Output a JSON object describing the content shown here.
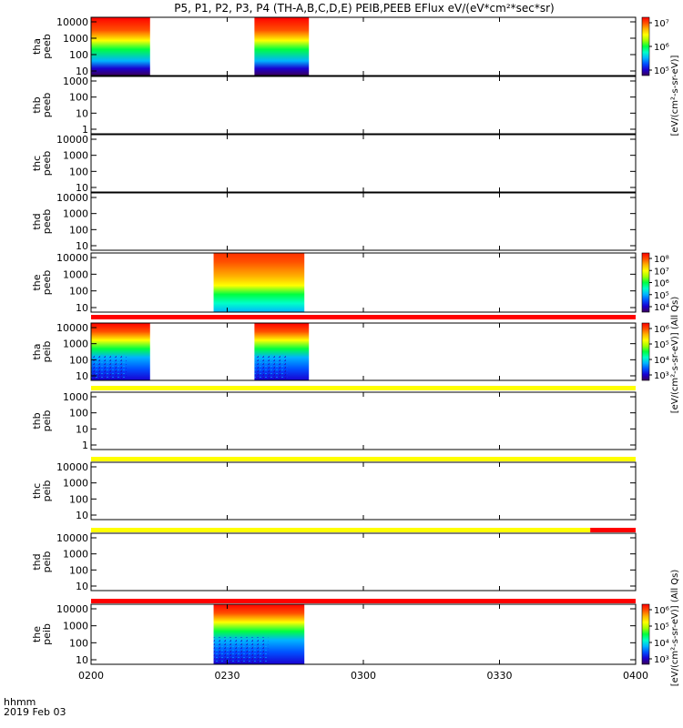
{
  "title": "P5, P1, P2, P3, P4 (TH-A,B,C,D,E) PEIB,PEEB EFlux eV/(eV*cm²*sec*sr)",
  "x_axis": {
    "labels": [
      "0200",
      "0230",
      "0300",
      "0330",
      "0400"
    ],
    "footer_unit": "hhmm",
    "footer_date": "2019 Feb 03"
  },
  "colorbar_labels": {
    "top": "[eV/(cm²-s-sr-eV)]",
    "middle_pair": "[eV/(cm²-s-sr-eV)] (All Qs)",
    "bottom": "[eV/(cm²-s-sr-eV)] (All Qs)"
  },
  "colors": {
    "status_red": "#ff0000",
    "status_yellow": "#ffff00",
    "spectrum": [
      "#3b005a",
      "#1a00d0",
      "#0050ff",
      "#00b4ff",
      "#00ffc8",
      "#00ff40",
      "#a0ff00",
      "#ffff00",
      "#ffb400",
      "#ff5000",
      "#ff0000"
    ]
  },
  "chart_data": [
    {
      "type": "heatmap",
      "probe": "tha",
      "product": "peeb",
      "ylabel": [
        "tha",
        "peeb"
      ],
      "yscale": "log",
      "yticks": [
        "10",
        "100",
        "1000",
        "10000"
      ],
      "time_blocks": [
        [
          "02:00",
          "02:13"
        ],
        [
          "02:36",
          "02:48"
        ]
      ],
      "colorbar": {
        "ticks": [
          "10⁵",
          "10⁶",
          "10⁷"
        ]
      },
      "status_bar": null
    },
    {
      "type": "heatmap",
      "probe": "thb",
      "product": "peeb",
      "ylabel": [
        "thb",
        "peeb"
      ],
      "yscale": "log",
      "yticks": [
        "1",
        "10",
        "100",
        "1000"
      ],
      "time_blocks": [],
      "colorbar": null,
      "status_bar": null
    },
    {
      "type": "heatmap",
      "probe": "thc",
      "product": "peeb",
      "ylabel": [
        "thc",
        "peeb"
      ],
      "yscale": "log",
      "yticks": [
        "10",
        "100",
        "1000",
        "10000"
      ],
      "time_blocks": [],
      "colorbar": null,
      "status_bar": null
    },
    {
      "type": "heatmap",
      "probe": "thd",
      "product": "peeb",
      "ylabel": [
        "thd",
        "peeb"
      ],
      "yscale": "log",
      "yticks": [
        "10",
        "100",
        "1000",
        "10000"
      ],
      "time_blocks": [],
      "colorbar": null,
      "status_bar": null
    },
    {
      "type": "heatmap",
      "probe": "the",
      "product": "peeb",
      "ylabel": [
        "the",
        "peeb"
      ],
      "yscale": "log",
      "yticks": [
        "10",
        "100",
        "1000",
        "10000"
      ],
      "time_blocks": [
        [
          "02:27",
          "02:47"
        ]
      ],
      "colorbar": {
        "ticks": [
          "10⁴",
          "10⁵",
          "10⁶",
          "10⁷",
          "10⁸"
        ]
      },
      "status_bar": null
    },
    {
      "type": "heatmap",
      "probe": "tha",
      "product": "peib",
      "ylabel": [
        "tha",
        "peib"
      ],
      "yscale": "log",
      "yticks": [
        "10",
        "100",
        "1000",
        "10000"
      ],
      "time_blocks": [
        [
          "02:00",
          "02:13"
        ],
        [
          "02:36",
          "02:48"
        ]
      ],
      "colorbar": {
        "ticks": [
          "10³",
          "10⁴",
          "10⁵",
          "10⁶"
        ]
      },
      "status_bar": "red"
    },
    {
      "type": "heatmap",
      "probe": "thb",
      "product": "peib",
      "ylabel": [
        "thb",
        "peib"
      ],
      "yscale": "log",
      "yticks": [
        "1",
        "10",
        "100",
        "1000"
      ],
      "time_blocks": [],
      "colorbar": null,
      "status_bar": "yellow"
    },
    {
      "type": "heatmap",
      "probe": "thc",
      "product": "peib",
      "ylabel": [
        "thc",
        "peib"
      ],
      "yscale": "log",
      "yticks": [
        "10",
        "100",
        "1000",
        "10000"
      ],
      "time_blocks": [],
      "colorbar": null,
      "status_bar": "yellow"
    },
    {
      "type": "heatmap",
      "probe": "thd",
      "product": "peib",
      "ylabel": [
        "thd",
        "peib"
      ],
      "yscale": "log",
      "yticks": [
        "10",
        "100",
        "1000",
        "10000"
      ],
      "time_blocks": [],
      "colorbar": null,
      "status_bar": "yellow-red"
    },
    {
      "type": "heatmap",
      "probe": "the",
      "product": "peib",
      "ylabel": [
        "the",
        "peib"
      ],
      "yscale": "log",
      "yticks": [
        "10",
        "100",
        "1000",
        "10000"
      ],
      "time_blocks": [
        [
          "02:27",
          "02:47"
        ]
      ],
      "colorbar": {
        "ticks": [
          "10³",
          "10⁴",
          "10⁵",
          "10⁶"
        ]
      },
      "status_bar": "red"
    }
  ]
}
